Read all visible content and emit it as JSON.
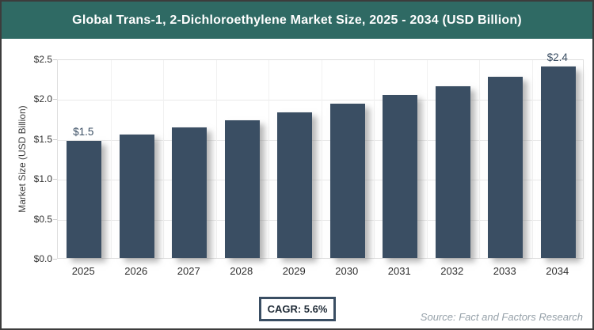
{
  "header": {
    "title": "Global Trans-1, 2-Dichloroethylene Market Size, 2025 - 2034 (USD Billion)"
  },
  "chart_data": {
    "type": "bar",
    "title": "Global Trans-1, 2-Dichloroethylene Market Size, 2025 - 2034 (USD Billion)",
    "categories": [
      "2025",
      "2026",
      "2027",
      "2028",
      "2029",
      "2030",
      "2031",
      "2032",
      "2033",
      "2034"
    ],
    "values": [
      1.47,
      1.55,
      1.64,
      1.73,
      1.83,
      1.93,
      2.04,
      2.15,
      2.27,
      2.4
    ],
    "bar_labels": {
      "2025": "$1.5",
      "2034": "$2.4"
    },
    "xlabel": "",
    "ylabel": "Market Size (USD Billion)",
    "ylim": [
      0,
      2.5
    ],
    "ytick_step": 0.5,
    "ytick_labels": [
      "$0.0",
      "$0.5",
      "$1.0",
      "$1.5",
      "$2.0",
      "$2.5"
    ],
    "grid": true,
    "legend": false,
    "bar_color": "#3a4e63"
  },
  "footer": {
    "cagr_label": "CAGR: 5.6%",
    "source": "Source: Fact and Factors Research"
  },
  "colors": {
    "header_bg": "#2f6a64",
    "bar": "#3a4e63",
    "frame_border": "#3c3c3c",
    "gridline": "#e9e9e9",
    "source_text": "#96a1a9"
  }
}
